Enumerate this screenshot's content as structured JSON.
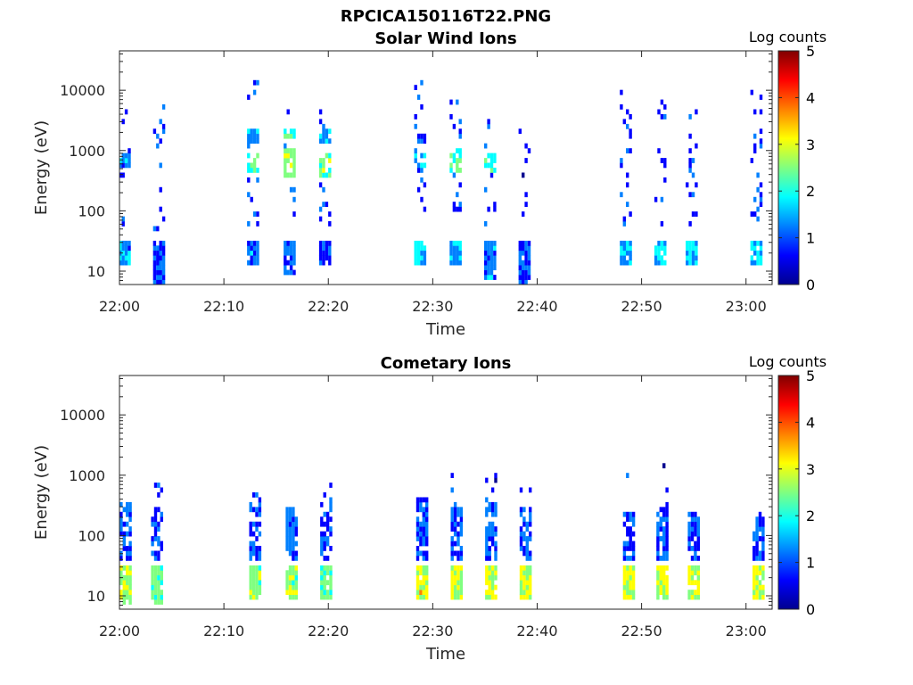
{
  "figure": {
    "suptitle": "RPCICA150116T22.PNG"
  },
  "colormap": [
    "#00008f",
    "#0000ff",
    "#0080ff",
    "#00ffff",
    "#80ff80",
    "#ffff00",
    "#ff8000",
    "#ff0000",
    "#800000"
  ],
  "chart_data": [
    {
      "type": "heatmap",
      "title": "Solar Wind Ions",
      "xlabel": "Time",
      "ylabel": "Energy (eV)",
      "x_ticks": [
        "22:00",
        "22:10",
        "22:20",
        "22:30",
        "22:40",
        "22:50",
        "23:00"
      ],
      "x_tick_minutes": [
        0,
        10,
        20,
        30,
        40,
        50,
        60
      ],
      "xlim_minutes": [
        0,
        62.5
      ],
      "y_scale": "log",
      "y_ticks": [
        "10",
        "100",
        "1000",
        "10000"
      ],
      "y_tick_values": [
        10,
        100,
        1000,
        10000
      ],
      "ylim": [
        6,
        45000
      ],
      "colorbar": {
        "label": "Log counts",
        "ticks": [
          "0",
          "1",
          "2",
          "3",
          "4",
          "5"
        ],
        "range": [
          0,
          5
        ]
      },
      "bursts": [
        {
          "t": 0.5,
          "low": [
            12,
            30,
            1.3
          ],
          "mid": [
            500,
            900,
            1.2
          ],
          "sparse": [
            60,
            4500,
            0.8
          ]
        },
        {
          "t": 3.8,
          "low": [
            6,
            30,
            1.0
          ],
          "sparse": [
            50,
            5500,
            0.8
          ]
        },
        {
          "t": 12.8,
          "low": [
            12,
            30,
            1.2
          ],
          "mid": [
            400,
            900,
            2.2
          ],
          "hi": [
            1200,
            2500,
            1.5
          ],
          "sparse": [
            60,
            18000,
            0.9
          ]
        },
        {
          "t": 16.3,
          "low": [
            8,
            30,
            1.0
          ],
          "mid": [
            350,
            1000,
            2.6
          ],
          "hi": [
            1500,
            2500,
            2.0
          ],
          "sparse": [
            60,
            8000,
            0.9
          ]
        },
        {
          "t": 19.7,
          "low": [
            12,
            30,
            1.0
          ],
          "mid": [
            350,
            900,
            2.5
          ],
          "hi": [
            1200,
            2300,
            1.4
          ],
          "sparse": [
            60,
            5000,
            0.9
          ]
        },
        {
          "t": 28.8,
          "low": [
            12,
            30,
            1.6
          ],
          "mid": [
            500,
            900,
            1.5
          ],
          "hi": [
            1400,
            2000,
            0.8
          ],
          "sparse": [
            60,
            19000,
            0.8
          ]
        },
        {
          "t": 32.2,
          "low": [
            12,
            30,
            1.3
          ],
          "mid": [
            450,
            1000,
            2.2
          ],
          "sparse": [
            60,
            7500,
            0.9
          ]
        },
        {
          "t": 35.5,
          "low": [
            7,
            30,
            1.2
          ],
          "mid": [
            450,
            900,
            2.0
          ],
          "sparse": [
            60,
            7000,
            0.9
          ]
        },
        {
          "t": 38.8,
          "low": [
            6,
            30,
            1.0
          ],
          "sparse": [
            60,
            3000,
            0.7
          ]
        },
        {
          "t": 48.5,
          "low": [
            12,
            30,
            1.4
          ],
          "sparse": [
            60,
            13000,
            0.8
          ]
        },
        {
          "t": 51.8,
          "low": [
            12,
            30,
            1.6
          ],
          "sparse": [
            60,
            7000,
            0.8
          ]
        },
        {
          "t": 54.8,
          "low": [
            12,
            30,
            1.6
          ],
          "sparse": [
            60,
            6000,
            0.8
          ]
        },
        {
          "t": 61.0,
          "low": [
            12,
            30,
            1.6
          ],
          "sparse": [
            60,
            10000,
            0.8
          ]
        }
      ]
    },
    {
      "type": "heatmap",
      "title": "Cometary Ions",
      "xlabel": "Time",
      "ylabel": "Energy (eV)",
      "x_ticks": [
        "22:00",
        "22:10",
        "22:20",
        "22:30",
        "22:40",
        "22:50",
        "23:00"
      ],
      "x_tick_minutes": [
        0,
        10,
        20,
        30,
        40,
        50,
        60
      ],
      "xlim_minutes": [
        0,
        62.5
      ],
      "y_scale": "log",
      "y_ticks": [
        "10",
        "100",
        "1000",
        "10000"
      ],
      "y_tick_values": [
        10,
        100,
        1000,
        10000
      ],
      "ylim": [
        6,
        45000
      ],
      "colorbar": {
        "label": "Log counts",
        "ticks": [
          "0",
          "1",
          "2",
          "3",
          "4",
          "5"
        ],
        "range": [
          0,
          5
        ]
      },
      "bursts": [
        {
          "t": 0.6,
          "low": [
            7,
            30,
            2.6
          ],
          "mid": [
            40,
            350,
            1.0
          ],
          "sparse": [
            60,
            800,
            0.7
          ]
        },
        {
          "t": 3.6,
          "low": [
            7,
            30,
            2.3
          ],
          "mid": [
            40,
            300,
            0.9
          ],
          "sparse": [
            60,
            900,
            0.7
          ]
        },
        {
          "t": 13.0,
          "low": [
            8,
            30,
            2.6
          ],
          "mid": [
            40,
            350,
            1.0
          ],
          "sparse": [
            60,
            700,
            0.7
          ]
        },
        {
          "t": 16.5,
          "low": [
            8,
            30,
            2.6
          ],
          "mid": [
            40,
            300,
            1.0
          ],
          "sparse": [
            60,
            800,
            0.7
          ]
        },
        {
          "t": 19.8,
          "low": [
            8,
            30,
            2.3
          ],
          "mid": [
            40,
            250,
            0.9
          ],
          "sparse": [
            60,
            700,
            0.7
          ]
        },
        {
          "t": 29.0,
          "low": [
            8,
            30,
            3.0
          ],
          "mid": [
            40,
            400,
            1.0
          ],
          "sparse": [
            60,
            900,
            0.7
          ]
        },
        {
          "t": 32.3,
          "low": [
            8,
            30,
            2.8
          ],
          "mid": [
            40,
            350,
            1.0
          ],
          "sparse": [
            60,
            1200,
            0.7
          ]
        },
        {
          "t": 35.6,
          "low": [
            8,
            30,
            2.8
          ],
          "mid": [
            40,
            350,
            1.0
          ],
          "sparse": [
            60,
            1500,
            0.7
          ]
        },
        {
          "t": 38.9,
          "low": [
            8,
            30,
            2.8
          ],
          "mid": [
            40,
            300,
            1.0
          ],
          "sparse": [
            60,
            800,
            0.7
          ]
        },
        {
          "t": 48.8,
          "low": [
            8,
            30,
            3.0
          ],
          "mid": [
            40,
            250,
            1.0
          ],
          "sparse": [
            60,
            1100,
            0.7
          ]
        },
        {
          "t": 52.0,
          "low": [
            8,
            30,
            3.0
          ],
          "mid": [
            40,
            300,
            1.0
          ],
          "sparse": [
            60,
            1800,
            0.7
          ]
        },
        {
          "t": 55.0,
          "low": [
            8,
            30,
            2.8
          ],
          "mid": [
            40,
            200,
            1.0
          ],
          "sparse": [
            60,
            300,
            0.7
          ]
        },
        {
          "t": 61.2,
          "low": [
            8,
            30,
            2.8
          ],
          "mid": [
            40,
            200,
            1.0
          ],
          "sparse": [
            60,
            300,
            0.7
          ]
        }
      ]
    }
  ]
}
